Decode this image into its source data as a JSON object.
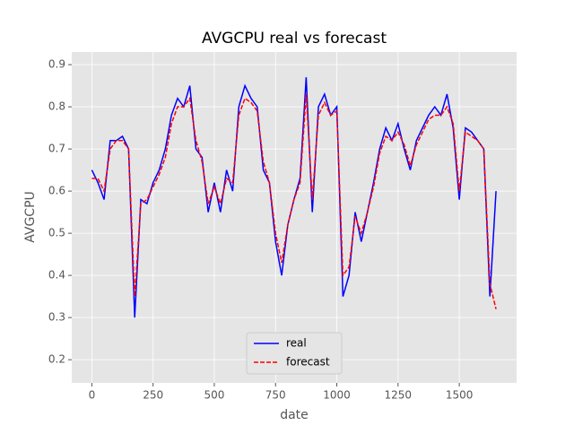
{
  "chart_data": {
    "type": "line",
    "title": "AVGCPU real vs forecast",
    "xlabel": "date",
    "ylabel": "AVGCPU",
    "x": [
      0,
      25,
      50,
      75,
      100,
      125,
      150,
      175,
      200,
      225,
      250,
      275,
      300,
      325,
      350,
      375,
      400,
      425,
      450,
      475,
      500,
      525,
      550,
      575,
      600,
      625,
      650,
      675,
      700,
      725,
      750,
      775,
      800,
      825,
      850,
      875,
      900,
      925,
      950,
      975,
      1000,
      1025,
      1050,
      1075,
      1100,
      1125,
      1150,
      1175,
      1200,
      1225,
      1250,
      1275,
      1300,
      1325,
      1350,
      1375,
      1400,
      1425,
      1450,
      1475,
      1500,
      1525,
      1550,
      1575,
      1600,
      1625,
      1650
    ],
    "series": [
      {
        "name": "real",
        "color": "#0000ff",
        "dash": false,
        "values": [
          0.65,
          0.62,
          0.58,
          0.72,
          0.72,
          0.73,
          0.7,
          0.3,
          0.58,
          0.57,
          0.62,
          0.65,
          0.7,
          0.78,
          0.82,
          0.8,
          0.85,
          0.7,
          0.68,
          0.55,
          0.62,
          0.55,
          0.65,
          0.6,
          0.8,
          0.85,
          0.82,
          0.8,
          0.65,
          0.62,
          0.48,
          0.4,
          0.52,
          0.58,
          0.63,
          0.87,
          0.55,
          0.8,
          0.83,
          0.78,
          0.8,
          0.35,
          0.4,
          0.55,
          0.48,
          0.55,
          0.62,
          0.7,
          0.75,
          0.72,
          0.76,
          0.7,
          0.65,
          0.72,
          0.75,
          0.78,
          0.8,
          0.78,
          0.83,
          0.75,
          0.58,
          0.75,
          0.74,
          0.72,
          0.7,
          0.35,
          0.6
        ]
      },
      {
        "name": "forecast",
        "color": "#ff0000",
        "dash": true,
        "values": [
          0.63,
          0.63,
          0.6,
          0.7,
          0.72,
          0.72,
          0.7,
          0.35,
          0.57,
          0.58,
          0.61,
          0.64,
          0.68,
          0.76,
          0.8,
          0.8,
          0.82,
          0.72,
          0.67,
          0.57,
          0.61,
          0.57,
          0.63,
          0.62,
          0.78,
          0.82,
          0.81,
          0.79,
          0.67,
          0.62,
          0.5,
          0.43,
          0.52,
          0.58,
          0.62,
          0.83,
          0.58,
          0.78,
          0.81,
          0.78,
          0.79,
          0.4,
          0.42,
          0.54,
          0.5,
          0.55,
          0.61,
          0.69,
          0.73,
          0.72,
          0.74,
          0.71,
          0.66,
          0.71,
          0.74,
          0.77,
          0.78,
          0.78,
          0.8,
          0.76,
          0.6,
          0.74,
          0.73,
          0.72,
          0.7,
          0.38,
          0.32
        ]
      }
    ],
    "xlim": [
      -82,
      1734
    ],
    "ylim": [
      0.145,
      0.93
    ],
    "xticks": [
      0,
      250,
      500,
      750,
      1000,
      1250,
      1500
    ],
    "yticks": [
      0.2,
      0.3,
      0.4,
      0.5,
      0.6,
      0.7,
      0.8,
      0.9
    ],
    "grid": true,
    "legend": "lower center"
  }
}
